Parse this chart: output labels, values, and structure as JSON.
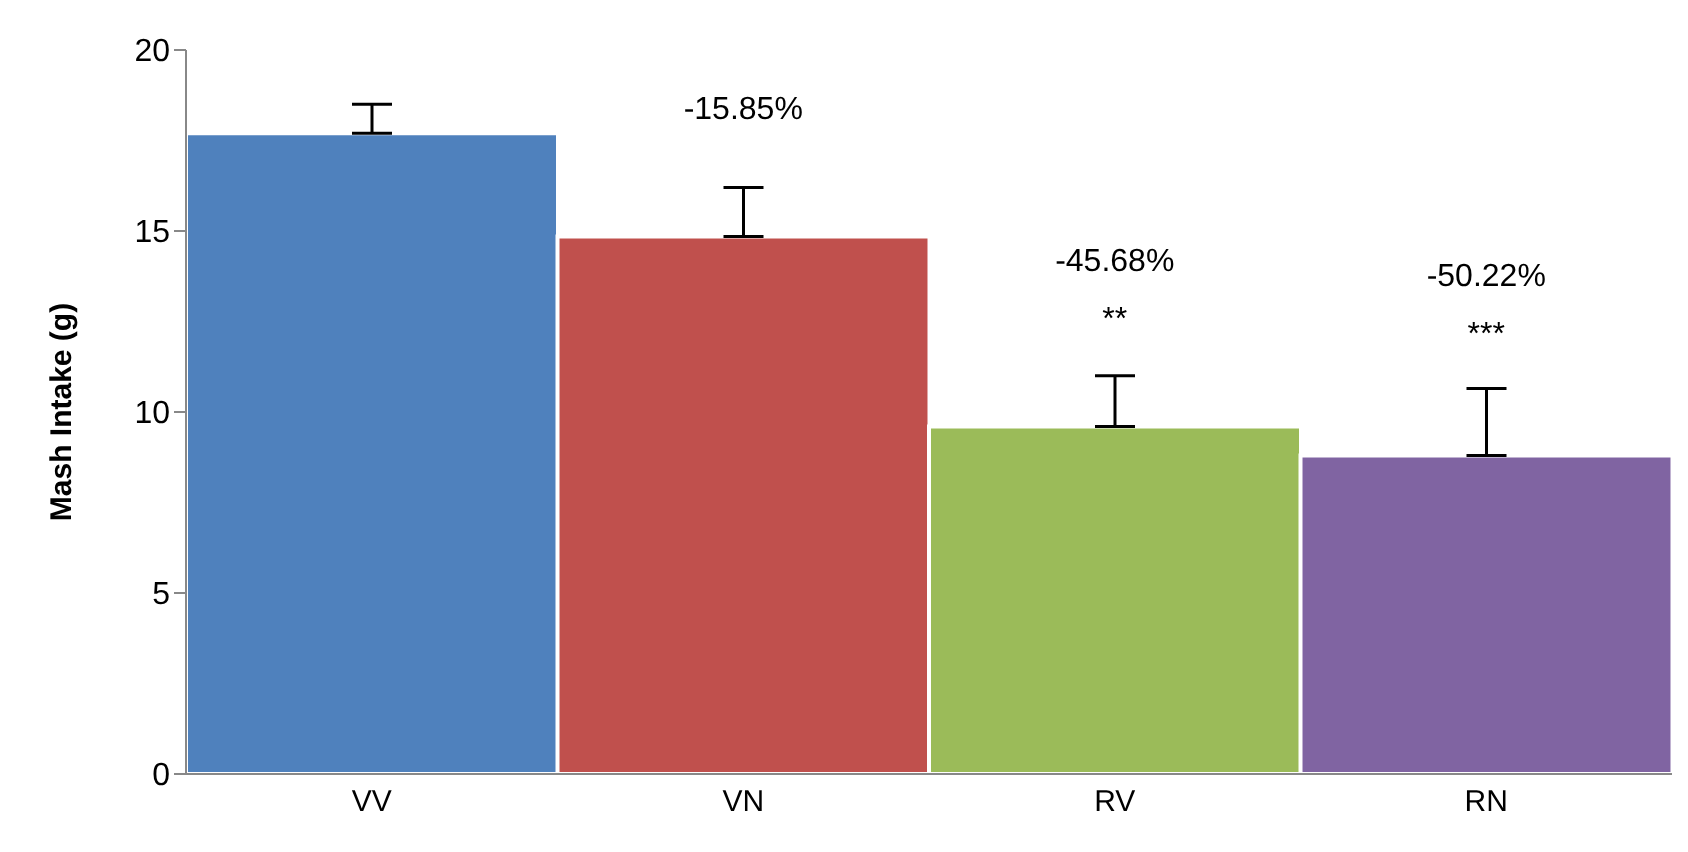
{
  "chart_data": {
    "type": "bar",
    "ylabel": "Mash Intake (g)",
    "categories": [
      "VV",
      "VN",
      "RV",
      "RN"
    ],
    "values": [
      17.7,
      14.85,
      9.6,
      8.8
    ],
    "colors": [
      "#4f81bd",
      "#c0504d",
      "#9bbb59",
      "#8064a2"
    ],
    "errors": [
      0.8,
      1.35,
      1.4,
      1.85
    ],
    "ylim": [
      0,
      20
    ],
    "yticks": [
      0,
      5,
      10,
      15,
      20
    ],
    "grid": false,
    "legend": false,
    "annotations": [
      "-15.85%",
      "-45.68%",
      "**",
      "-50.22%",
      "***"
    ]
  }
}
